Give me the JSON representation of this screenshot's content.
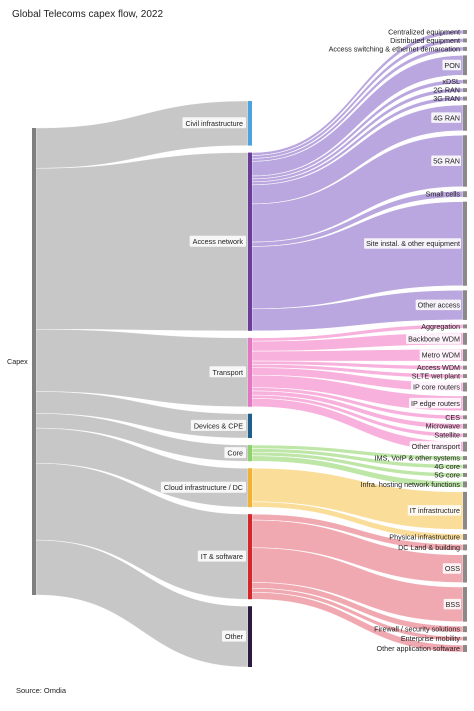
{
  "title": "Global Telecoms capex flow, 2022",
  "source": "Source: Omdia",
  "chart_data": {
    "type": "sankey",
    "title": "Global Telecoms capex flow, 2022",
    "root": {
      "name": "Capex",
      "color": "#7f7f7f"
    },
    "categories": [
      {
        "name": "Civil infrastructure",
        "color": "#4da3e0",
        "value": 5.5,
        "children": []
      },
      {
        "name": "Access network",
        "color": "#6a3d9a",
        "linkColor": "#b39ddb",
        "value": 22,
        "children": [
          {
            "name": "Centralized equipment",
            "value": 0.4
          },
          {
            "name": "Distributed equipment",
            "value": 0.4
          },
          {
            "name": "Access switching & ethernet demarcation",
            "value": 0.4
          },
          {
            "name": "PON",
            "value": 2.0
          },
          {
            "name": "xDSL",
            "value": 0.4
          },
          {
            "name": "2G RAN",
            "value": 0.4
          },
          {
            "name": "3G RAN",
            "value": 0.4
          },
          {
            "name": "4G RAN",
            "value": 2.6
          },
          {
            "name": "5G RAN",
            "value": 5.2
          },
          {
            "name": "Small cells",
            "value": 0.6
          },
          {
            "name": "Site instal. & other equipment",
            "value": 8.5
          },
          {
            "name": "Other access",
            "value": 3.0
          }
        ]
      },
      {
        "name": "Transport",
        "color": "#e377c2",
        "linkColor": "#f7a8d8",
        "value": 8.5,
        "children": [
          {
            "name": "Aggregation",
            "value": 0.4
          },
          {
            "name": "Backbone WDM",
            "value": 1.2
          },
          {
            "name": "Metro WDM",
            "value": 1.2
          },
          {
            "name": "Access WDM",
            "value": 0.4
          },
          {
            "name": "SLTE wet plant",
            "value": 0.4
          },
          {
            "name": "IP core routers",
            "value": 0.9
          },
          {
            "name": "IP edge routers",
            "value": 1.5
          },
          {
            "name": "CES",
            "value": 0.4
          },
          {
            "name": "Microwave",
            "value": 0.5
          },
          {
            "name": "Satellite",
            "value": 0.4
          },
          {
            "name": "Other transport",
            "value": 1.0
          }
        ]
      },
      {
        "name": "Devices & CPE",
        "color": "#1f5f8b",
        "value": 3.0,
        "children": []
      },
      {
        "name": "Core",
        "color": "#8fd16b",
        "linkColor": "#b6e39d",
        "value": 2.0,
        "children": [
          {
            "name": "IMS, VoIP & other systems",
            "value": 0.4
          },
          {
            "name": "4G core",
            "value": 0.4
          },
          {
            "name": "5G core",
            "value": 0.4
          },
          {
            "name": "Infra. hosting network functions",
            "value": 0.6
          }
        ]
      },
      {
        "name": "Cloud infrastructure / DC",
        "color": "#f2b134",
        "linkColor": "#fbd98f",
        "value": 4.8,
        "children": [
          {
            "name": "IT infrastructure",
            "value": 3.8
          },
          {
            "name": "Physical infrastructure",
            "value": 0.6
          }
        ]
      },
      {
        "name": "IT & software",
        "color": "#d62728",
        "linkColor": "#f0a0a8",
        "value": 10.5,
        "children": [
          {
            "name": "DC Land & building",
            "value": 0.6
          },
          {
            "name": "OSS",
            "value": 2.8
          },
          {
            "name": "BSS",
            "value": 3.5
          },
          {
            "name": "Firewall / security solutions",
            "value": 0.6
          },
          {
            "name": "Enterprise mobility",
            "value": 0.4
          },
          {
            "name": "Other application software",
            "value": 0.7
          }
        ]
      },
      {
        "name": "Other",
        "color": "#2d1b3d",
        "value": 7.5,
        "children": []
      }
    ]
  }
}
